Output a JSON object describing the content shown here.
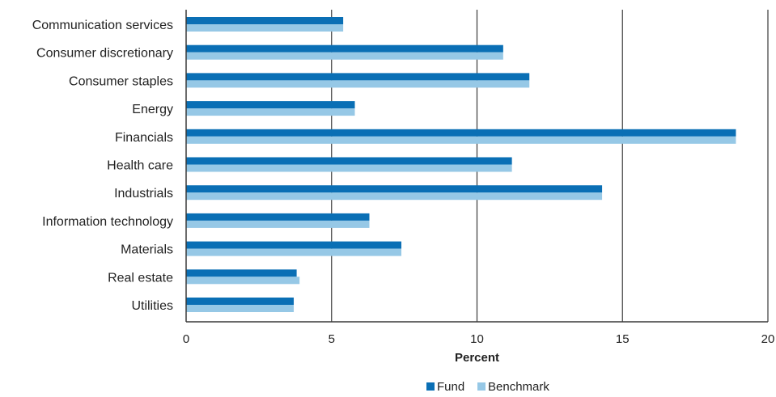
{
  "chart_data": {
    "type": "bar",
    "orientation": "horizontal",
    "categories": [
      "Communication services",
      "Consumer discretionary",
      "Consumer staples",
      "Energy",
      "Financials",
      "Health care",
      "Industrials",
      "Information technology",
      "Materials",
      "Real estate",
      "Utilities"
    ],
    "series": [
      {
        "name": "Fund",
        "color": "#0a6fb5",
        "values": [
          5.4,
          10.9,
          11.8,
          5.8,
          18.9,
          11.2,
          14.3,
          6.3,
          7.4,
          3.8,
          3.7
        ]
      },
      {
        "name": "Benchmark",
        "color": "#96c8e6",
        "values": [
          5.4,
          10.9,
          11.8,
          5.8,
          18.9,
          11.2,
          14.3,
          6.3,
          7.4,
          3.9,
          3.7
        ]
      }
    ],
    "xlabel": "Percent",
    "xlim": [
      0,
      20
    ],
    "xticks": [
      0,
      5,
      10,
      15,
      20
    ],
    "grid": "vertical",
    "legend": "bottom-center"
  }
}
